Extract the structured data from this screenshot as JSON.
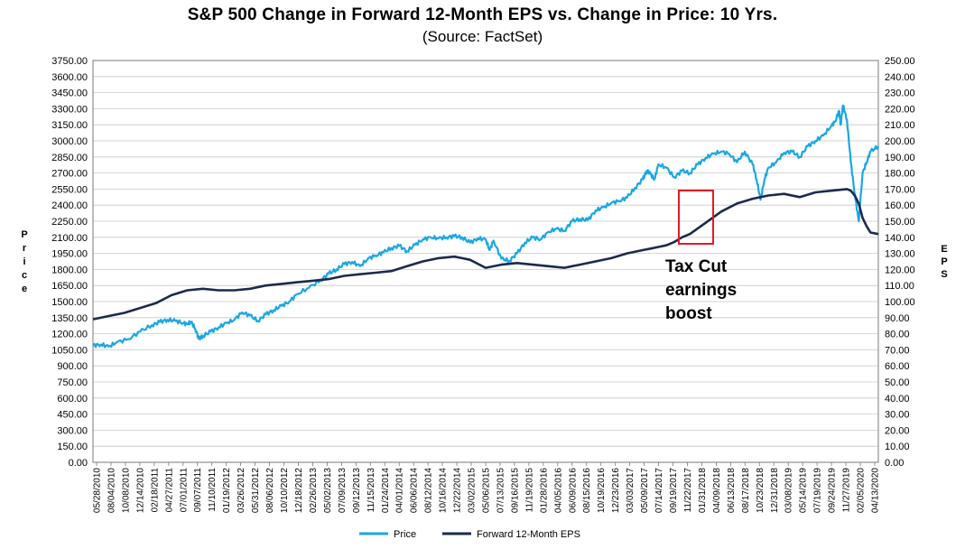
{
  "chart_data": {
    "type": "line",
    "title": "S&P 500 Change in Forward 12-Month EPS vs. Change in Price: 10 Yrs.",
    "subtitle": "(Source: FactSet)",
    "ylabel_left": "Price",
    "ylabel_right": "EPS",
    "ylim_left": [
      0,
      3750
    ],
    "ylim_right": [
      0,
      250
    ],
    "yticks_left": [
      "3750.00",
      "3600.00",
      "3450.00",
      "3300.00",
      "3150.00",
      "3000.00",
      "2850.00",
      "2700.00",
      "2550.00",
      "2400.00",
      "2250.00",
      "2100.00",
      "1950.00",
      "1800.00",
      "1650.00",
      "1500.00",
      "1350.00",
      "1200.00",
      "1050.00",
      "900.00",
      "750.00",
      "600.00",
      "450.00",
      "300.00",
      "150.00",
      "0.00"
    ],
    "yticks_right": [
      "250.00",
      "240.00",
      "230.00",
      "220.00",
      "210.00",
      "200.00",
      "190.00",
      "180.00",
      "170.00",
      "160.00",
      "150.00",
      "140.00",
      "130.00",
      "120.00",
      "110.00",
      "100.00",
      "90.00",
      "80.00",
      "70.00",
      "60.00",
      "50.00",
      "40.00",
      "30.00",
      "20.00",
      "10.00",
      "0.00"
    ],
    "xticks": [
      "05/28/2010",
      "08/04/2010",
      "10/08/2010",
      "12/14/2010",
      "02/18/2011",
      "04/27/2011",
      "07/01/2011",
      "09/07/2011",
      "11/10/2011",
      "01/19/2012",
      "03/26/2012",
      "05/31/2012",
      "08/06/2012",
      "10/10/2012",
      "12/18/2012",
      "02/26/2013",
      "05/02/2013",
      "07/09/2013",
      "09/12/2013",
      "11/15/2013",
      "01/24/2014",
      "04/01/2014",
      "06/06/2014",
      "08/12/2014",
      "10/16/2014",
      "12/22/2014",
      "03/02/2015",
      "05/06/2015",
      "07/13/2015",
      "09/16/2015",
      "11/19/2015",
      "01/28/2016",
      "04/05/2016",
      "06/09/2016",
      "08/15/2016",
      "10/19/2016",
      "12/23/2016",
      "03/03/2017",
      "05/09/2017",
      "07/14/2017",
      "09/19/2017",
      "11/22/2017",
      "01/31/2018",
      "04/09/2018",
      "06/13/2018",
      "08/17/2018",
      "10/23/2018",
      "12/31/2018",
      "03/08/2019",
      "05/14/2019",
      "07/19/2019",
      "09/24/2019",
      "11/27/2019",
      "02/05/2020",
      "04/13/2020"
    ],
    "series": [
      {
        "name": "Price",
        "color": "#1aa7e2",
        "axis": "left",
        "x": [
          0,
          0.01,
          0.02,
          0.03,
          0.045,
          0.06,
          0.075,
          0.085,
          0.095,
          0.105,
          0.115,
          0.12,
          0.125,
          0.13,
          0.135,
          0.14,
          0.15,
          0.16,
          0.17,
          0.18,
          0.19,
          0.2,
          0.21,
          0.22,
          0.23,
          0.24,
          0.25,
          0.26,
          0.275,
          0.29,
          0.3,
          0.31,
          0.32,
          0.33,
          0.34,
          0.35,
          0.36,
          0.37,
          0.38,
          0.39,
          0.4,
          0.41,
          0.42,
          0.43,
          0.44,
          0.45,
          0.46,
          0.47,
          0.48,
          0.49,
          0.5,
          0.505,
          0.51,
          0.52,
          0.53,
          0.54,
          0.55,
          0.56,
          0.57,
          0.58,
          0.59,
          0.6,
          0.61,
          0.62,
          0.63,
          0.64,
          0.65,
          0.66,
          0.67,
          0.68,
          0.69,
          0.7,
          0.705,
          0.71,
          0.715,
          0.72,
          0.73,
          0.74,
          0.75,
          0.76,
          0.77,
          0.78,
          0.79,
          0.8,
          0.81,
          0.82,
          0.83,
          0.84,
          0.845,
          0.85,
          0.855,
          0.86,
          0.87,
          0.88,
          0.89,
          0.9,
          0.91,
          0.92,
          0.93,
          0.94,
          0.945,
          0.95,
          0.952,
          0.955,
          0.96,
          0.965,
          0.97,
          0.975,
          0.98,
          0.985,
          0.99,
          1.0
        ],
        "values": [
          1090,
          1100,
          1080,
          1120,
          1150,
          1220,
          1280,
          1310,
          1330,
          1320,
          1300,
          1290,
          1310,
          1250,
          1150,
          1180,
          1220,
          1260,
          1300,
          1330,
          1400,
          1370,
          1320,
          1380,
          1420,
          1460,
          1500,
          1570,
          1630,
          1700,
          1760,
          1800,
          1850,
          1870,
          1830,
          1900,
          1930,
          1960,
          2000,
          2020,
          1970,
          2030,
          2080,
          2100,
          2090,
          2100,
          2110,
          2100,
          2050,
          2090,
          2080,
          1980,
          2070,
          1900,
          1880,
          1950,
          2050,
          2100,
          2080,
          2150,
          2180,
          2160,
          2250,
          2270,
          2260,
          2350,
          2380,
          2420,
          2440,
          2470,
          2560,
          2640,
          2720,
          2690,
          2640,
          2780,
          2750,
          2660,
          2720,
          2700,
          2780,
          2840,
          2880,
          2900,
          2880,
          2800,
          2900,
          2780,
          2640,
          2450,
          2640,
          2750,
          2800,
          2890,
          2900,
          2850,
          2950,
          3000,
          3050,
          3140,
          3180,
          3280,
          3150,
          3330,
          3200,
          2800,
          2500,
          2250,
          2700,
          2800,
          2900,
          2950
        ]
      },
      {
        "name": "Forward 12-Month EPS",
        "color": "#1b2a4e",
        "axis": "right",
        "x": [
          0,
          0.02,
          0.04,
          0.06,
          0.08,
          0.1,
          0.12,
          0.14,
          0.16,
          0.18,
          0.2,
          0.22,
          0.24,
          0.26,
          0.28,
          0.3,
          0.32,
          0.34,
          0.36,
          0.38,
          0.4,
          0.42,
          0.44,
          0.46,
          0.47,
          0.48,
          0.5,
          0.52,
          0.54,
          0.56,
          0.58,
          0.6,
          0.62,
          0.64,
          0.66,
          0.68,
          0.7,
          0.71,
          0.72,
          0.73,
          0.74,
          0.75,
          0.76,
          0.78,
          0.8,
          0.82,
          0.84,
          0.86,
          0.88,
          0.9,
          0.92,
          0.94,
          0.95,
          0.96,
          0.965,
          0.97,
          0.975,
          0.98,
          0.985,
          0.99,
          1.0
        ],
        "values": [
          89,
          91,
          93,
          96,
          99,
          104,
          107,
          108,
          107,
          107,
          108,
          110,
          111,
          112,
          113,
          114,
          116,
          117,
          118,
          119,
          122,
          125,
          127,
          128,
          127,
          126,
          121,
          123,
          124,
          123,
          122,
          121,
          123,
          125,
          127,
          130,
          132,
          133,
          134,
          135,
          137,
          140,
          142,
          149,
          156,
          161,
          164,
          166,
          167,
          165,
          168,
          169,
          169.5,
          170,
          169,
          166,
          161,
          152,
          147,
          143,
          142
        ]
      }
    ],
    "annotation": {
      "lines": [
        "Tax Cut",
        "earnings",
        "boost"
      ],
      "box_color": "#e31b23"
    },
    "legend": [
      "Price",
      "Forward 12-Month EPS"
    ]
  }
}
